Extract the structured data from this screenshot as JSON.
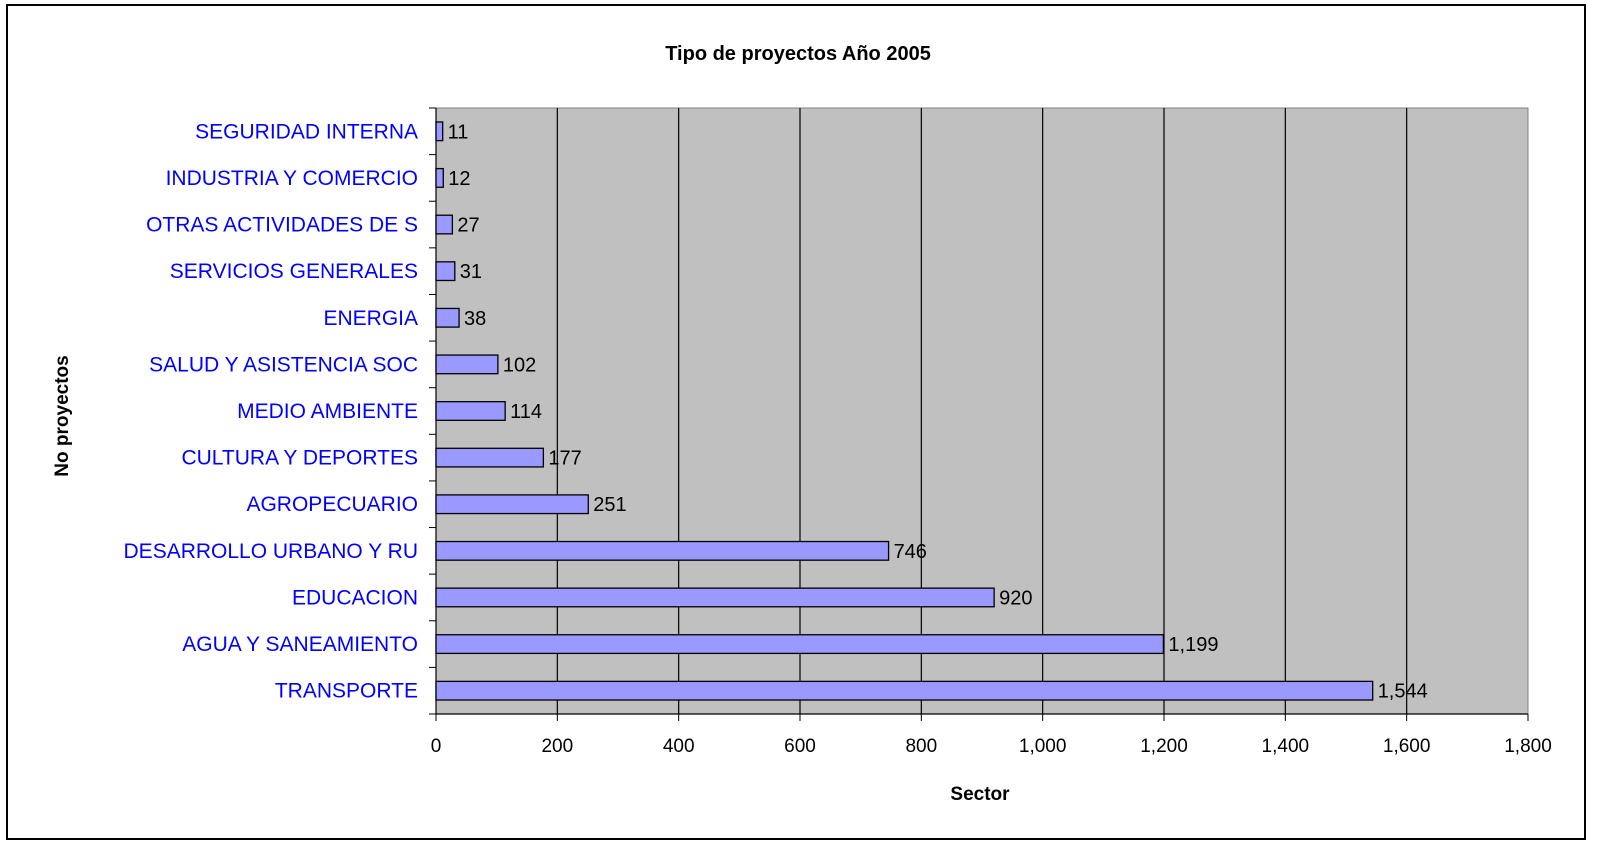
{
  "chart_data": {
    "type": "bar",
    "orientation": "horizontal",
    "title": "Tipo de proyectos Año 2005",
    "xlabel": "Sector",
    "ylabel": "No proyectos",
    "categories": [
      "SEGURIDAD INTERNA",
      "INDUSTRIA Y COMERCIO",
      "OTRAS ACTIVIDADES DE S",
      "SERVICIOS GENERALES",
      "ENERGIA",
      "SALUD Y ASISTENCIA SOC",
      "MEDIO AMBIENTE",
      "CULTURA Y DEPORTES",
      "AGROPECUARIO",
      "DESARROLLO URBANO Y RU",
      "EDUCACION",
      "AGUA Y SANEAMIENTO",
      "TRANSPORTE"
    ],
    "values": [
      11,
      12,
      27,
      31,
      38,
      102,
      114,
      177,
      251,
      746,
      920,
      1199,
      1544
    ],
    "data_labels": [
      "11",
      "12",
      "27",
      "31",
      "38",
      "102",
      "114",
      "177",
      "251",
      "746",
      "920",
      "1,199",
      "1,544"
    ],
    "xlim": [
      0,
      1800
    ],
    "xticks": [
      0,
      200,
      400,
      600,
      800,
      1000,
      1200,
      1400,
      1600,
      1800
    ],
    "xtick_labels": [
      "0",
      "200",
      "400",
      "600",
      "800",
      "1,000",
      "1,200",
      "1,400",
      "1,600",
      "1,800"
    ],
    "grid": "vertical",
    "legend": "none",
    "colors": {
      "bar_fill": "#9999ff",
      "bar_stroke": "#000000",
      "plot_background": "#c0c0c0",
      "category_label": "#0000ff",
      "gridline": "#000000"
    }
  }
}
